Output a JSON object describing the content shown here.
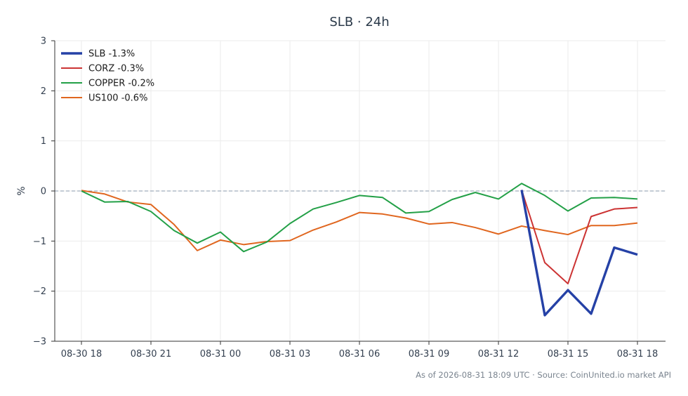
{
  "chart_data": {
    "type": "line",
    "title": "SLB · 24h",
    "xlabel": "",
    "ylabel": "%",
    "ylim": [
      -3,
      3
    ],
    "yticks": [
      3,
      2,
      1,
      0,
      -1,
      -2,
      -3
    ],
    "ytick_labels": [
      "3",
      "2",
      "1",
      "0",
      "−1",
      "−2",
      "−3"
    ],
    "xticks": [
      {
        "x": "2026-08-30 18:00",
        "label": "08-30 18"
      },
      {
        "x": "2026-08-30 21:00",
        "label": "08-30 21"
      },
      {
        "x": "2026-08-31 00:00",
        "label": "08-31 00"
      },
      {
        "x": "2026-08-31 03:00",
        "label": "08-31 03"
      },
      {
        "x": "2026-08-31 06:00",
        "label": "08-31 06"
      },
      {
        "x": "2026-08-31 09:00",
        "label": "08-31 09"
      },
      {
        "x": "2026-08-31 12:00",
        "label": "08-31 12"
      },
      {
        "x": "2026-08-31 15:00",
        "label": "08-31 15"
      },
      {
        "x": "2026-08-31 18:00",
        "label": "08-31 18"
      }
    ],
    "x_start": "2026-08-30 18:00",
    "x_end": "2026-08-31 18:00",
    "grid": true,
    "baseline": 0,
    "legend_position": "top-left",
    "footer": "As of 2026-08-31 18:09 UTC · Source: CoinUnited.io market API",
    "series": [
      {
        "name": "SLB -1.3%",
        "color": "#2541a6",
        "emphasis": true,
        "points": [
          {
            "x": "2026-08-31 13:00",
            "y": 0.02
          },
          {
            "x": "2026-08-31 14:00",
            "y": -2.48
          },
          {
            "x": "2026-08-31 15:00",
            "y": -1.98
          },
          {
            "x": "2026-08-31 16:00",
            "y": -2.45
          },
          {
            "x": "2026-08-31 17:00",
            "y": -1.13
          },
          {
            "x": "2026-08-31 18:00",
            "y": -1.27
          }
        ]
      },
      {
        "name": "CORZ -0.3%",
        "color": "#cc3333",
        "emphasis": false,
        "points": [
          {
            "x": "2026-08-31 13:00",
            "y": 0.02
          },
          {
            "x": "2026-08-31 14:00",
            "y": -1.43
          },
          {
            "x": "2026-08-31 15:00",
            "y": -1.85
          },
          {
            "x": "2026-08-31 16:00",
            "y": -0.51
          },
          {
            "x": "2026-08-31 17:00",
            "y": -0.36
          },
          {
            "x": "2026-08-31 18:00",
            "y": -0.33
          }
        ]
      },
      {
        "name": "COPPER -0.2%",
        "color": "#23a047",
        "emphasis": false,
        "points": [
          {
            "x": "2026-08-30 18:00",
            "y": 0.0
          },
          {
            "x": "2026-08-30 19:00",
            "y": -0.22
          },
          {
            "x": "2026-08-30 20:00",
            "y": -0.21
          },
          {
            "x": "2026-08-30 21:00",
            "y": -0.41
          },
          {
            "x": "2026-08-30 22:00",
            "y": -0.79
          },
          {
            "x": "2026-08-30 23:00",
            "y": -1.04
          },
          {
            "x": "2026-08-31 00:00",
            "y": -0.82
          },
          {
            "x": "2026-08-31 01:00",
            "y": -1.21
          },
          {
            "x": "2026-08-31 02:00",
            "y": -1.02
          },
          {
            "x": "2026-08-31 03:00",
            "y": -0.65
          },
          {
            "x": "2026-08-31 04:00",
            "y": -0.36
          },
          {
            "x": "2026-08-31 05:00",
            "y": -0.23
          },
          {
            "x": "2026-08-31 06:00",
            "y": -0.09
          },
          {
            "x": "2026-08-31 07:00",
            "y": -0.13
          },
          {
            "x": "2026-08-31 08:00",
            "y": -0.44
          },
          {
            "x": "2026-08-31 09:00",
            "y": -0.41
          },
          {
            "x": "2026-08-31 10:00",
            "y": -0.17
          },
          {
            "x": "2026-08-31 11:00",
            "y": -0.03
          },
          {
            "x": "2026-08-31 12:00",
            "y": -0.16
          },
          {
            "x": "2026-08-31 13:00",
            "y": 0.15
          },
          {
            "x": "2026-08-31 14:00",
            "y": -0.09
          },
          {
            "x": "2026-08-31 15:00",
            "y": -0.4
          },
          {
            "x": "2026-08-31 16:00",
            "y": -0.14
          },
          {
            "x": "2026-08-31 17:00",
            "y": -0.13
          },
          {
            "x": "2026-08-31 18:00",
            "y": -0.16
          }
        ]
      },
      {
        "name": "US100 -0.6%",
        "color": "#e0661f",
        "emphasis": false,
        "points": [
          {
            "x": "2026-08-30 18:00",
            "y": 0.01
          },
          {
            "x": "2026-08-30 19:00",
            "y": -0.06
          },
          {
            "x": "2026-08-30 20:00",
            "y": -0.22
          },
          {
            "x": "2026-08-30 21:00",
            "y": -0.27
          },
          {
            "x": "2026-08-30 22:00",
            "y": -0.67
          },
          {
            "x": "2026-08-30 23:00",
            "y": -1.19
          },
          {
            "x": "2026-08-31 00:00",
            "y": -0.98
          },
          {
            "x": "2026-08-31 01:00",
            "y": -1.07
          },
          {
            "x": "2026-08-31 02:00",
            "y": -1.01
          },
          {
            "x": "2026-08-31 03:00",
            "y": -0.99
          },
          {
            "x": "2026-08-31 04:00",
            "y": -0.78
          },
          {
            "x": "2026-08-31 05:00",
            "y": -0.62
          },
          {
            "x": "2026-08-31 06:00",
            "y": -0.43
          },
          {
            "x": "2026-08-31 07:00",
            "y": -0.46
          },
          {
            "x": "2026-08-31 08:00",
            "y": -0.54
          },
          {
            "x": "2026-08-31 09:00",
            "y": -0.66
          },
          {
            "x": "2026-08-31 10:00",
            "y": -0.63
          },
          {
            "x": "2026-08-31 11:00",
            "y": -0.73
          },
          {
            "x": "2026-08-31 12:00",
            "y": -0.86
          },
          {
            "x": "2026-08-31 13:00",
            "y": -0.7
          },
          {
            "x": "2026-08-31 14:00",
            "y": -0.79
          },
          {
            "x": "2026-08-31 15:00",
            "y": -0.87
          },
          {
            "x": "2026-08-31 16:00",
            "y": -0.69
          },
          {
            "x": "2026-08-31 17:00",
            "y": -0.69
          },
          {
            "x": "2026-08-31 18:00",
            "y": -0.64
          }
        ]
      }
    ]
  }
}
